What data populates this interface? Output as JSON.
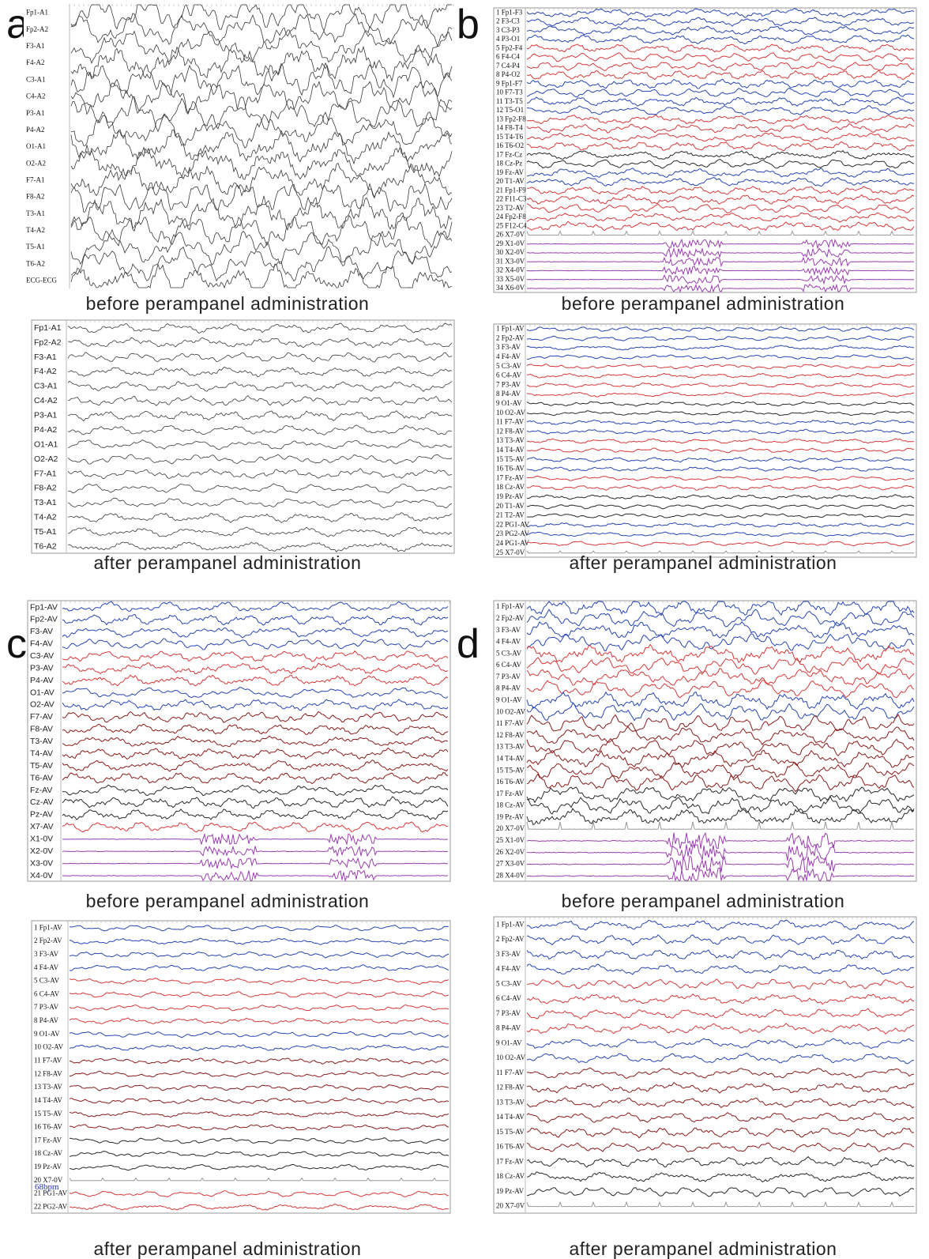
{
  "panels": [
    {
      "letter": "a",
      "before": {
        "caption": "before perampanel administration",
        "channels": [
          "Fp1-A1",
          "Fp2-A2",
          "F3-A1",
          "F4-A2",
          "C3-A1",
          "C4-A2",
          "P3-A1",
          "P4-A2",
          "O1-A1",
          "O2-A2",
          "F7-A1",
          "F8-A2",
          "T3-A1",
          "T4-A2",
          "T5-A1",
          "T6-A2",
          "ECG-ECG"
        ]
      },
      "after": {
        "caption": "after perampanel administration",
        "channels": [
          "Fp1-A1",
          "Fp2-A2",
          "F3-A1",
          "F4-A2",
          "C3-A1",
          "C4-A2",
          "P3-A1",
          "P4-A2",
          "O1-A1",
          "O2-A2",
          "F7-A1",
          "F8-A2",
          "T3-A1",
          "T4-A2",
          "T5-A1",
          "T6-A2"
        ]
      }
    },
    {
      "letter": "b",
      "before": {
        "caption": "before perampanel administration",
        "channels": [
          "1 Fp1-F3",
          "2 F3-C3",
          "3 C3-P3",
          "4 P3-O1",
          "5 Fp2-F4",
          "6 F4-C4",
          "7 C4-P4",
          "8 P4-O2",
          "9 Fp1-F7",
          "10 F7-T3",
          "11 T3-T5",
          "12 T5-O1",
          "13 Fp2-F8",
          "14 F8-T4",
          "15 T4-T6",
          "16 T6-O2",
          "17 Fz-Cz",
          "18 Cz-Pz",
          "19 Fz-AV",
          "20 T1-AV",
          "21 Fp1-F9",
          "22 F11-C3",
          "23 T2-AV",
          "24 Fp2-F8",
          "25 F12-C4",
          "26 X7-0V",
          "29 X1-0V",
          "30 X2-0V",
          "31 X3-0V",
          "32 X4-0V",
          "33 X5-0V",
          "34 X6-0V"
        ]
      },
      "after": {
        "caption": "after perampanel administration",
        "channels": [
          "1 Fp1-AV",
          "2 Fp2-AV",
          "3 F3-AV",
          "4 F4-AV",
          "5 C3-AV",
          "6 C4-AV",
          "7 P3-AV",
          "8 P4-AV",
          "9 O1-AV",
          "10 O2-AV",
          "11 F7-AV",
          "12 F8-AV",
          "13 T3-AV",
          "14 T4-AV",
          "15 T5-AV",
          "16 T6-AV",
          "17 Fz-AV",
          "18 Cz-AV",
          "19 Pz-AV",
          "20 T1-AV",
          "21 T2-AV",
          "22 PG1-AV",
          "23 PG2-AV",
          "24 PG1-AV",
          "25 X7-0V"
        ]
      }
    },
    {
      "letter": "c",
      "before": {
        "caption": "before perampanel administration",
        "channels": [
          "Fp1-AV",
          "Fp2-AV",
          "F3-AV",
          "F4-AV",
          "C3-AV",
          "P3-AV",
          "P4-AV",
          "O1-AV",
          "O2-AV",
          "F7-AV",
          "F8-AV",
          "T3-AV",
          "T4-AV",
          "T5-AV",
          "T6-AV",
          "Fz-AV",
          "Cz-AV",
          "Pz-AV",
          "X7-AV",
          "X1-0V",
          "X2-0V",
          "X3-0V",
          "X4-0V"
        ]
      },
      "after": {
        "caption": "after perampanel administration",
        "note": "68bpm",
        "channels": [
          "1 Fp1-AV",
          "2 Fp2-AV",
          "3 F3-AV",
          "4 F4-AV",
          "5 C3-AV",
          "6 C4-AV",
          "7 P3-AV",
          "8 P4-AV",
          "9 O1-AV",
          "10 O2-AV",
          "11 F7-AV",
          "12 F8-AV",
          "13 T3-AV",
          "14 T4-AV",
          "15 T5-AV",
          "16 T6-AV",
          "17 Fz-AV",
          "18 Cz-AV",
          "19 Pz-AV",
          "20 X7-0V",
          "21 PG1-AV",
          "22 PG2-AV"
        ]
      }
    },
    {
      "letter": "d",
      "before": {
        "caption": "before perampanel administration",
        "channels": [
          "1 Fp1-AV",
          "2 Fp2-AV",
          "3 F3-AV",
          "4 F4-AV",
          "5 C3-AV",
          "6 C4-AV",
          "7 P3-AV",
          "8 P4-AV",
          "9 O1-AV",
          "10 O2-AV",
          "11 F7-AV",
          "12 F8-AV",
          "13 T3-AV",
          "14 T4-AV",
          "15 T5-AV",
          "16 T6-AV",
          "17 Fz-AV",
          "18 Cz-AV",
          "19 Pz-AV",
          "20 X7-0V",
          "25 X1-0V",
          "26 X2-0V",
          "27 X3-0V",
          "28 X4-0V"
        ]
      },
      "after": {
        "caption": "after perampanel administration",
        "channels": [
          "1 Fp1-AV",
          "2 Fp2-AV",
          "3 F3-AV",
          "4 F4-AV",
          "5 C3-AV",
          "6 C4-AV",
          "7 P3-AV",
          "8 P4-AV",
          "9 O1-AV",
          "10 O2-AV",
          "11 F7-AV",
          "12 F8-AV",
          "13 T3-AV",
          "14 T4-AV",
          "15 T5-AV",
          "16 T6-AV",
          "17 Fz-AV",
          "18 Cz-AV",
          "19 Pz-AV",
          "20 X7-0V"
        ]
      }
    }
  ]
}
